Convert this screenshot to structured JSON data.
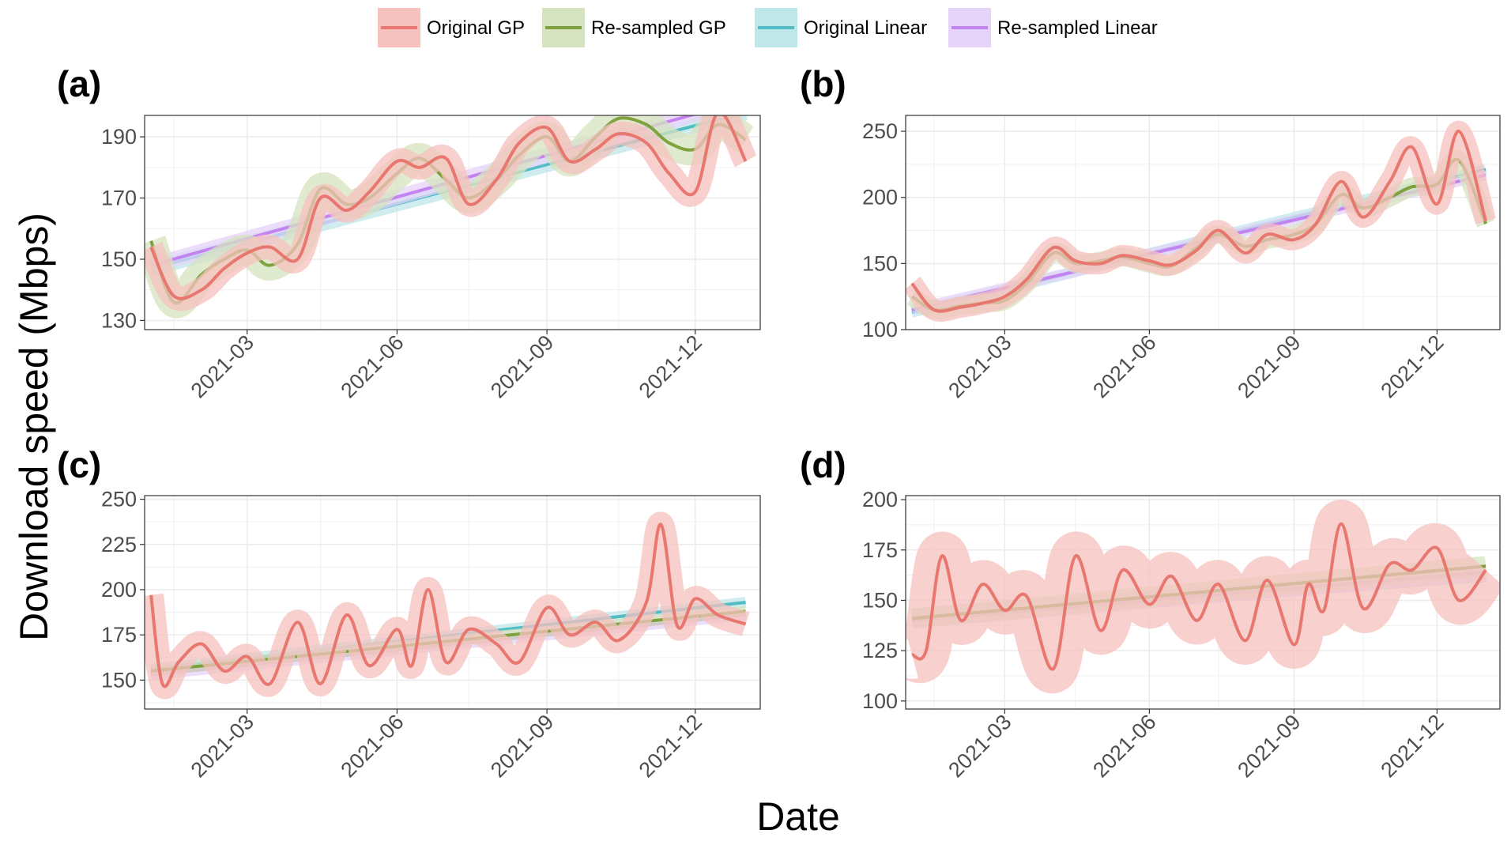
{
  "figure": {
    "xlabel": "Date",
    "ylabel": "Download speed (Mbps)"
  },
  "legend": [
    {
      "name": "Original GP",
      "color": "#e8776f",
      "band": "#f5c2bf"
    },
    {
      "name": "Re-sampled GP",
      "color": "#7fa23e",
      "band": "#d5e3bf"
    },
    {
      "name": "Original Linear",
      "color": "#52bdc4",
      "band": "#bfe6e8"
    },
    {
      "name": "Re-sampled Linear",
      "color": "#c384f2",
      "band": "#e6d3fa"
    }
  ],
  "chart_data": [
    {
      "type": "line",
      "panel": "(a)",
      "xlabel": "Date",
      "ylabel": "Download speed (Mbps)",
      "x_range": [
        "2021-01-01",
        "2022-01-01"
      ],
      "xticks": [
        "2021-03",
        "2021-06",
        "2021-09",
        "2021-12"
      ],
      "ylim": [
        127,
        197
      ],
      "yticks": [
        130,
        150,
        170,
        190
      ],
      "grid": true,
      "series": [
        {
          "name": "Original GP",
          "band": 4,
          "x": [
            "2021-01-01",
            "2021-01-15",
            "2021-02-01",
            "2021-02-15",
            "2021-03-01",
            "2021-03-15",
            "2021-04-01",
            "2021-04-15",
            "2021-05-01",
            "2021-05-15",
            "2021-06-01",
            "2021-06-15",
            "2021-07-01",
            "2021-07-15",
            "2021-08-01",
            "2021-08-15",
            "2021-09-01",
            "2021-09-15",
            "2021-10-01",
            "2021-10-15",
            "2021-11-01",
            "2021-11-15",
            "2021-12-01",
            "2021-12-15",
            "2022-01-01"
          ],
          "y": [
            154,
            138,
            140,
            147,
            152,
            154,
            150,
            170,
            166,
            172,
            182,
            180,
            183,
            168,
            176,
            188,
            193,
            182,
            186,
            191,
            188,
            178,
            172,
            198,
            182
          ]
        },
        {
          "name": "Re-sampled GP",
          "band": 5,
          "x": [
            "2021-01-01",
            "2021-01-15",
            "2021-02-01",
            "2021-02-15",
            "2021-03-01",
            "2021-03-15",
            "2021-04-01",
            "2021-04-15",
            "2021-05-01",
            "2021-05-15",
            "2021-06-01",
            "2021-06-15",
            "2021-07-01",
            "2021-07-15",
            "2021-08-01",
            "2021-08-15",
            "2021-09-01",
            "2021-09-15",
            "2021-10-01",
            "2021-10-15",
            "2021-11-01",
            "2021-11-15",
            "2021-12-01",
            "2021-12-15",
            "2022-01-01"
          ],
          "y": [
            156,
            136,
            145,
            150,
            153,
            148,
            155,
            173,
            168,
            170,
            178,
            183,
            176,
            170,
            176,
            184,
            190,
            182,
            190,
            196,
            194,
            188,
            186,
            194,
            189
          ]
        },
        {
          "name": "Original Linear",
          "band": 2.5,
          "x": [
            "2021-01-01",
            "2022-01-01"
          ],
          "y": [
            147,
            198
          ]
        },
        {
          "name": "Re-sampled Linear",
          "band": 2.5,
          "x": [
            "2021-01-01",
            "2022-01-01"
          ],
          "y": [
            148,
            202
          ]
        }
      ]
    },
    {
      "type": "line",
      "panel": "(b)",
      "xlabel": "Date",
      "ylabel": "Download speed (Mbps)",
      "x_range": [
        "2021-01-01",
        "2022-01-01"
      ],
      "xticks": [
        "2021-03",
        "2021-06",
        "2021-09",
        "2021-12"
      ],
      "ylim": [
        100,
        262
      ],
      "yticks": [
        100,
        150,
        200,
        250
      ],
      "grid": true,
      "series": [
        {
          "name": "Original GP",
          "band": 8,
          "x": [
            "2021-01-01",
            "2021-01-15",
            "2021-02-01",
            "2021-02-15",
            "2021-03-01",
            "2021-03-15",
            "2021-04-01",
            "2021-04-15",
            "2021-05-01",
            "2021-05-15",
            "2021-06-01",
            "2021-06-15",
            "2021-07-01",
            "2021-07-15",
            "2021-08-01",
            "2021-08-15",
            "2021-09-01",
            "2021-09-15",
            "2021-10-01",
            "2021-10-15",
            "2021-11-01",
            "2021-11-15",
            "2021-12-01",
            "2021-12-15",
            "2022-01-01"
          ],
          "y": [
            135,
            115,
            117,
            120,
            125,
            138,
            162,
            152,
            150,
            156,
            152,
            149,
            160,
            175,
            158,
            172,
            168,
            180,
            212,
            185,
            212,
            238,
            195,
            250,
            182
          ]
        },
        {
          "name": "Re-sampled GP",
          "band": 7,
          "x": [
            "2021-01-01",
            "2021-01-15",
            "2021-02-01",
            "2021-02-15",
            "2021-03-01",
            "2021-03-15",
            "2021-04-01",
            "2021-04-15",
            "2021-05-01",
            "2021-05-15",
            "2021-06-01",
            "2021-06-15",
            "2021-07-01",
            "2021-07-15",
            "2021-08-01",
            "2021-08-15",
            "2021-09-01",
            "2021-09-15",
            "2021-10-01",
            "2021-10-15",
            "2021-11-01",
            "2021-11-15",
            "2021-12-01",
            "2021-12-15",
            "2022-01-01"
          ],
          "y": [
            125,
            115,
            118,
            120,
            122,
            135,
            158,
            150,
            152,
            155,
            150,
            148,
            162,
            172,
            163,
            168,
            172,
            180,
            202,
            192,
            200,
            208,
            210,
            228,
            180
          ]
        },
        {
          "name": "Original Linear",
          "band": 4,
          "x": [
            "2021-01-01",
            "2022-01-01"
          ],
          "y": [
            113,
            221
          ]
        },
        {
          "name": "Re-sampled Linear",
          "band": 4,
          "x": [
            "2021-01-01",
            "2022-01-01"
          ],
          "y": [
            115,
            217
          ]
        }
      ]
    },
    {
      "type": "line",
      "panel": "(c)",
      "xlabel": "Date",
      "ylabel": "Download speed (Mbps)",
      "x_range": [
        "2021-01-01",
        "2022-01-01"
      ],
      "xticks": [
        "2021-03",
        "2021-06",
        "2021-09",
        "2021-12"
      ],
      "ylim": [
        134,
        252
      ],
      "yticks": [
        150,
        175,
        200,
        225,
        250
      ],
      "grid": true,
      "series": [
        {
          "name": "Original GP",
          "band": 7,
          "x": [
            "2021-01-01",
            "2021-01-08",
            "2021-01-18",
            "2021-02-01",
            "2021-02-15",
            "2021-03-01",
            "2021-03-15",
            "2021-04-01",
            "2021-04-15",
            "2021-05-01",
            "2021-05-15",
            "2021-06-01",
            "2021-06-10",
            "2021-06-20",
            "2021-07-01",
            "2021-07-15",
            "2021-08-01",
            "2021-08-15",
            "2021-09-01",
            "2021-09-15",
            "2021-10-01",
            "2021-10-15",
            "2021-11-01",
            "2021-11-10",
            "2021-11-20",
            "2021-12-01",
            "2021-12-15",
            "2022-01-01"
          ],
          "y": [
            197,
            148,
            160,
            170,
            155,
            163,
            148,
            182,
            148,
            186,
            158,
            178,
            158,
            200,
            160,
            178,
            170,
            160,
            190,
            175,
            182,
            172,
            193,
            236,
            180,
            195,
            186,
            181
          ]
        },
        {
          "name": "Re-sampled GP",
          "band": 3,
          "x": [
            "2021-01-01",
            "2022-01-01"
          ],
          "y": [
            155,
            188
          ]
        },
        {
          "name": "Original Linear",
          "band": 3,
          "x": [
            "2021-01-01",
            "2022-01-01"
          ],
          "y": [
            156,
            193
          ]
        },
        {
          "name": "Re-sampled Linear",
          "band": 3,
          "x": [
            "2021-01-01",
            "2022-01-01"
          ],
          "y": [
            153,
            186
          ]
        }
      ]
    },
    {
      "type": "line",
      "panel": "(d)",
      "xlabel": "Date",
      "ylabel": "Download speed (Mbps)",
      "x_range": [
        "2021-01-01",
        "2022-01-01"
      ],
      "xticks": [
        "2021-03",
        "2021-06",
        "2021-09",
        "2021-12"
      ],
      "ylim": [
        96,
        202
      ],
      "yticks": [
        100,
        125,
        150,
        175,
        200
      ],
      "grid": true,
      "series": [
        {
          "name": "Original GP",
          "band": 12,
          "x": [
            "2021-01-01",
            "2021-01-10",
            "2021-01-20",
            "2021-02-01",
            "2021-02-15",
            "2021-03-01",
            "2021-03-15",
            "2021-04-01",
            "2021-04-15",
            "2021-05-01",
            "2021-05-15",
            "2021-06-01",
            "2021-06-15",
            "2021-07-01",
            "2021-07-15",
            "2021-08-01",
            "2021-08-15",
            "2021-09-01",
            "2021-09-10",
            "2021-09-20",
            "2021-10-01",
            "2021-10-15",
            "2021-11-01",
            "2021-11-15",
            "2021-12-01",
            "2021-12-15",
            "2022-01-01"
          ],
          "y": [
            123,
            125,
            172,
            140,
            158,
            145,
            152,
            116,
            172,
            135,
            165,
            148,
            162,
            140,
            158,
            130,
            160,
            128,
            158,
            145,
            188,
            146,
            168,
            165,
            176,
            150,
            165
          ]
        },
        {
          "name": "Re-sampled GP",
          "band": 5,
          "x": [
            "2021-01-01",
            "2022-01-01"
          ],
          "y": [
            141,
            167
          ]
        },
        {
          "name": "Original Linear",
          "band": 4,
          "x": [
            "2021-01-01",
            "2022-01-01"
          ],
          "y": [
            142,
            163
          ]
        },
        {
          "name": "Re-sampled Linear",
          "band": 4,
          "x": [
            "2021-01-01",
            "2022-01-01"
          ],
          "y": [
            140,
            164
          ]
        }
      ]
    }
  ]
}
